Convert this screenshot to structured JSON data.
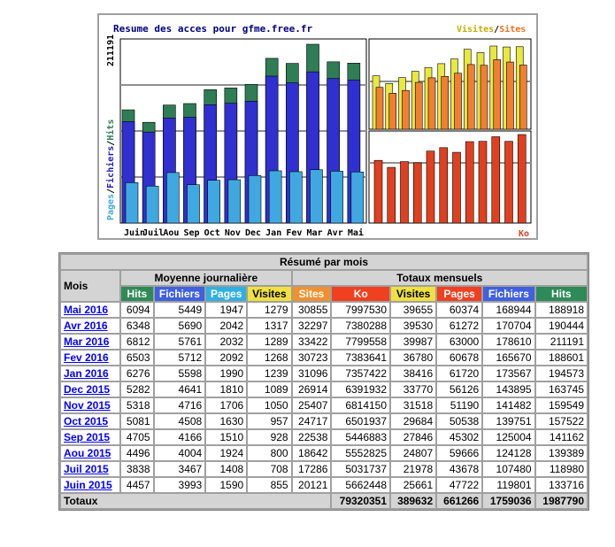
{
  "chart_data": [
    {
      "type": "bar",
      "title": "Resume des acces pour gfme.free.fr",
      "categories": [
        "Juin",
        "Juil",
        "Aou",
        "Sep",
        "Oct",
        "Nov",
        "Dec",
        "Jan",
        "Fev",
        "Mar",
        "Avr",
        "Mai"
      ],
      "ymax_label": "211191",
      "ymax": 211191,
      "ylabel_parts": [
        "Pages",
        "Fichiers",
        "Hits"
      ],
      "series": [
        {
          "name": "Hits",
          "color": "#2e7d55",
          "values": [
            133716,
            118980,
            139389,
            141162,
            157522,
            159549,
            163745,
            194573,
            188601,
            211191,
            190444,
            188918
          ]
        },
        {
          "name": "Fichiers",
          "color": "#3030d0",
          "values": [
            119801,
            107480,
            124128,
            125004,
            139751,
            141482,
            143895,
            173567,
            165670,
            178610,
            170704,
            168944
          ]
        },
        {
          "name": "Pages",
          "color": "#40a8e0",
          "values": [
            47722,
            43678,
            59666,
            45302,
            50538,
            51190,
            56126,
            61720,
            60678,
            63000,
            61272,
            60374
          ]
        }
      ]
    },
    {
      "type": "bar",
      "legend": [
        "Visites",
        "Sites"
      ],
      "ymax_label": "39987",
      "ymax": 39987,
      "series": [
        {
          "name": "Visites",
          "color": "#e8e840",
          "values": [
            25661,
            21978,
            24807,
            27846,
            29684,
            31518,
            33770,
            38416,
            36780,
            39987,
            39530,
            39655
          ]
        },
        {
          "name": "Sites",
          "color": "#f08030",
          "values": [
            20121,
            17286,
            18642,
            22538,
            24717,
            25407,
            26914,
            31096,
            30723,
            33422,
            32297,
            30855
          ]
        }
      ]
    },
    {
      "type": "bar",
      "legend": [
        "Ko"
      ],
      "ymax_label": "7997530",
      "ymax": 7997530,
      "series": [
        {
          "name": "Ko",
          "color": "#e04020",
          "values": [
            5662448,
            5031737,
            5552825,
            5446883,
            6501937,
            6814150,
            6391932,
            7357422,
            7383641,
            7799558,
            7380288,
            7997530
          ]
        }
      ]
    }
  ],
  "colors": {
    "hits": "#2e7d55",
    "fichiers": "#3030d0",
    "pages": "#40a8e0",
    "visites": "#e8e840",
    "sites": "#f08030",
    "ko": "#e04020",
    "hits_hdr": "#2e8b57",
    "fichiers_hdr": "#4060e0",
    "pages_hdr": "#30b0e0",
    "visites_hdr": "#f0e040",
    "sites_hdr": "#f09030",
    "ko_hdr": "#f04020",
    "kb_hdr": "#f04020"
  },
  "table": {
    "title": "Résumé par mois",
    "mois": "Mois",
    "group_daily": "Moyenne journalière",
    "group_monthly": "Totaux mensuels",
    "daily_cols": [
      "Hits",
      "Fichiers",
      "Pages",
      "Visites"
    ],
    "monthly_cols": [
      "Sites",
      "Ko",
      "Visites",
      "Pages",
      "Fichiers",
      "Hits"
    ],
    "rows": [
      {
        "month": "Mai 2016",
        "d": [
          "6094",
          "5449",
          "1947",
          "1279"
        ],
        "m": [
          "30855",
          "7997530",
          "39655",
          "60374",
          "168944",
          "188918"
        ]
      },
      {
        "month": "Avr 2016",
        "d": [
          "6348",
          "5690",
          "2042",
          "1317"
        ],
        "m": [
          "32297",
          "7380288",
          "39530",
          "61272",
          "170704",
          "190444"
        ]
      },
      {
        "month": "Mar 2016",
        "d": [
          "6812",
          "5761",
          "2032",
          "1289"
        ],
        "m": [
          "33422",
          "7799558",
          "39987",
          "63000",
          "178610",
          "211191"
        ]
      },
      {
        "month": "Fev 2016",
        "d": [
          "6503",
          "5712",
          "2092",
          "1268"
        ],
        "m": [
          "30723",
          "7383641",
          "36780",
          "60678",
          "165670",
          "188601"
        ]
      },
      {
        "month": "Jan 2016",
        "d": [
          "6276",
          "5598",
          "1990",
          "1239"
        ],
        "m": [
          "31096",
          "7357422",
          "38416",
          "61720",
          "173567",
          "194573"
        ]
      },
      {
        "month": "Dec 2015",
        "d": [
          "5282",
          "4641",
          "1810",
          "1089"
        ],
        "m": [
          "26914",
          "6391932",
          "33770",
          "56126",
          "143895",
          "163745"
        ]
      },
      {
        "month": "Nov 2015",
        "d": [
          "5318",
          "4716",
          "1706",
          "1050"
        ],
        "m": [
          "25407",
          "6814150",
          "31518",
          "51190",
          "141482",
          "159549"
        ]
      },
      {
        "month": "Oct 2015",
        "d": [
          "5081",
          "4508",
          "1630",
          "957"
        ],
        "m": [
          "24717",
          "6501937",
          "29684",
          "50538",
          "139751",
          "157522"
        ]
      },
      {
        "month": "Sep 2015",
        "d": [
          "4705",
          "4166",
          "1510",
          "928"
        ],
        "m": [
          "22538",
          "5446883",
          "27846",
          "45302",
          "125004",
          "141162"
        ]
      },
      {
        "month": "Aou 2015",
        "d": [
          "4496",
          "4004",
          "1924",
          "800"
        ],
        "m": [
          "18642",
          "5552825",
          "24807",
          "59666",
          "124128",
          "139389"
        ]
      },
      {
        "month": "Juil 2015",
        "d": [
          "3838",
          "3467",
          "1408",
          "708"
        ],
        "m": [
          "17286",
          "5031737",
          "21978",
          "43678",
          "107480",
          "118980"
        ]
      },
      {
        "month": "Juin 2015",
        "d": [
          "4457",
          "3993",
          "1590",
          "855"
        ],
        "m": [
          "20121",
          "5662448",
          "25661",
          "47722",
          "119801",
          "133716"
        ]
      }
    ],
    "totals_label": "Totaux",
    "totals": [
      "79320351",
      "389632",
      "661266",
      "1759036",
      "1987790"
    ]
  }
}
